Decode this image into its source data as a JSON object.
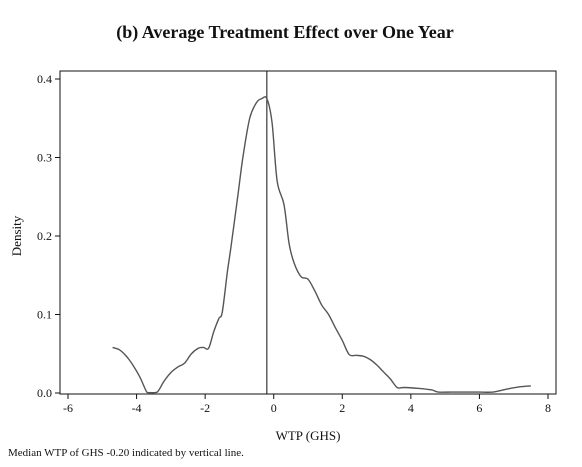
{
  "chart_data": {
    "type": "line",
    "title": "(b) Average Treatment Effect over One Year",
    "xlabel": "WTP (GHS)",
    "ylabel": "Density",
    "note": "Median WTP of GHS -0.20 indicated by vertical line.",
    "xlim": [
      -6,
      8
    ],
    "ylim": [
      0,
      0.4
    ],
    "xticks": [
      -6,
      -4,
      -2,
      0,
      2,
      4,
      6,
      8
    ],
    "yticks": [
      0.0,
      0.1,
      0.2,
      0.3,
      0.4
    ],
    "ytick_labels": [
      "0.0",
      "0.1",
      "0.2",
      "0.3",
      "0.4"
    ],
    "vline": -0.2,
    "grid": false,
    "line_color": "#555555",
    "series": [
      {
        "x": [
          -4.7,
          -4.5,
          -4.3,
          -4.1,
          -3.9,
          -3.7,
          -3.6,
          -3.4,
          -3.2,
          -3.0,
          -2.8,
          -2.6,
          -2.4,
          -2.2,
          -2.05,
          -1.9,
          -1.75,
          -1.6,
          -1.5,
          -1.35,
          -1.25,
          -1.05,
          -0.9,
          -0.7,
          -0.5,
          -0.35,
          -0.2,
          -0.05,
          0.1,
          0.3,
          0.45,
          0.6,
          0.8,
          1.0,
          1.2,
          1.4,
          1.6,
          1.8,
          2.0,
          2.2,
          2.4,
          2.6,
          2.8,
          3.0,
          3.2,
          3.4,
          3.6,
          3.8,
          4.2,
          4.6,
          4.8,
          5.2,
          5.6,
          6.0,
          6.4,
          6.8,
          7.2,
          7.5
        ],
        "y": [
          0.058,
          0.055,
          0.047,
          0.035,
          0.02,
          0.001,
          0.0005,
          0.001,
          0.015,
          0.026,
          0.033,
          0.038,
          0.05,
          0.057,
          0.058,
          0.057,
          0.078,
          0.095,
          0.103,
          0.155,
          0.185,
          0.25,
          0.3,
          0.35,
          0.37,
          0.375,
          0.375,
          0.345,
          0.27,
          0.24,
          0.19,
          0.165,
          0.148,
          0.145,
          0.13,
          0.112,
          0.1,
          0.083,
          0.067,
          0.049,
          0.048,
          0.047,
          0.043,
          0.036,
          0.027,
          0.018,
          0.007,
          0.007,
          0.006,
          0.004,
          0.0012,
          0.0012,
          0.0012,
          0.0012,
          0.0012,
          0.005,
          0.008,
          0.009
        ]
      }
    ]
  }
}
